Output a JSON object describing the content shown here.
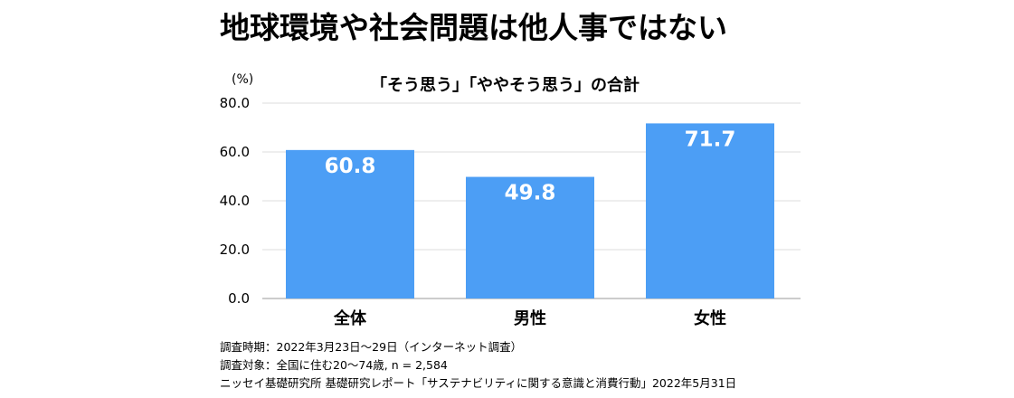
{
  "title": "地球環境や社会問題は他人事ではない",
  "chart_data": {
    "type": "bar",
    "title": "「そう思う」「ややそう思う」の合計",
    "ylabel": "(%)",
    "xlabel": "",
    "categories": [
      "全体",
      "男性",
      "女性"
    ],
    "values": [
      60.8,
      49.8,
      71.7
    ],
    "value_labels": [
      "60.8",
      "49.8",
      "71.7"
    ],
    "ylim": [
      0,
      80
    ],
    "yticks": [
      0,
      20,
      40,
      60,
      80
    ],
    "ytick_labels": [
      "0.0",
      "20.0",
      "40.0",
      "60.0",
      "80.0"
    ],
    "grid": true,
    "legend": "none",
    "bar_color": "#4c9ef5",
    "grid_color": "#dddddd"
  },
  "notes": [
    "調査時期：2022年3月23日〜29日（インターネット調査）",
    "調査対象：全国に住む20〜74歳, n = 2,584",
    "ニッセイ基礎研究所 基礎研究レポート「サステナビリティに関する意識と消費行動」2022年5月31日"
  ]
}
